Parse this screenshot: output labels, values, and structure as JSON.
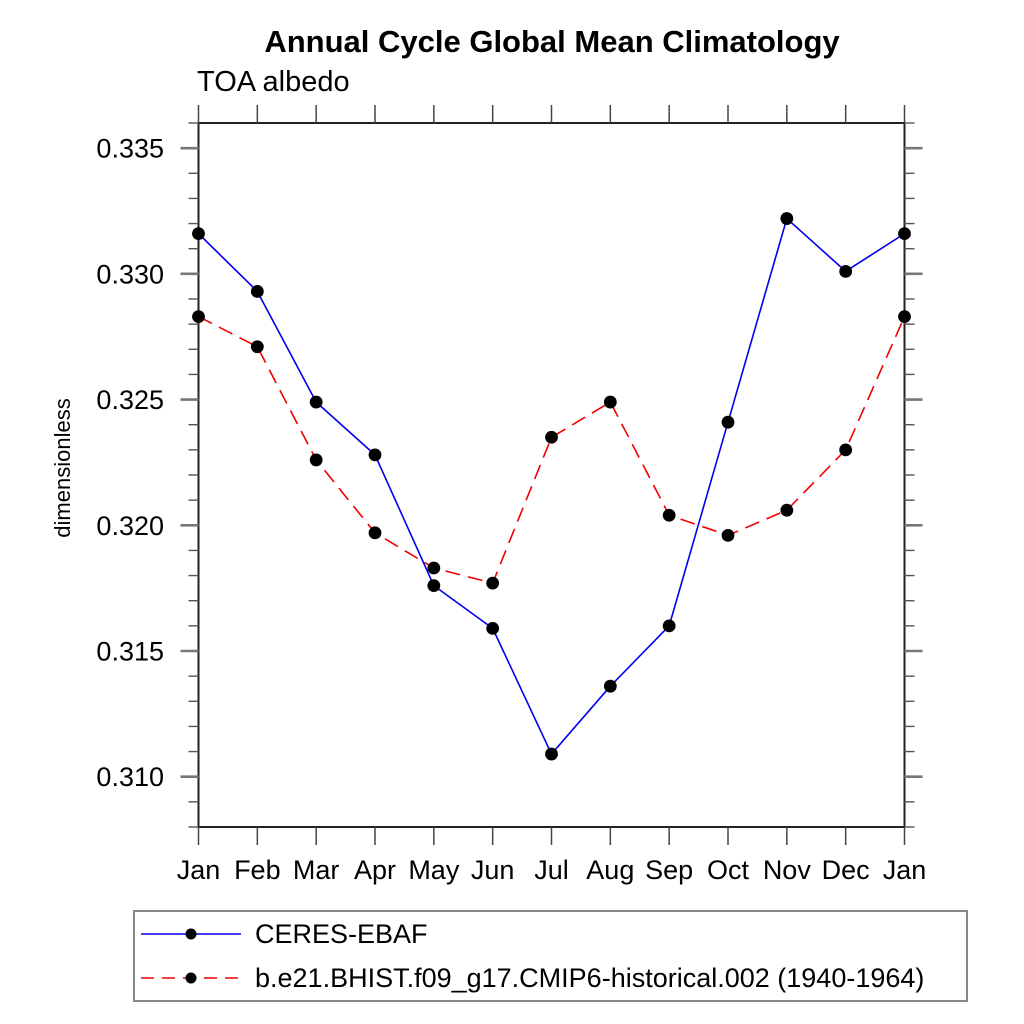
{
  "chart_data": {
    "type": "line",
    "title": "Annual Cycle Global Mean Climatology",
    "subtitle": "TOA albedo",
    "ylabel": "dimensionless",
    "x_tick_labels": [
      "Jan",
      "Feb",
      "Mar",
      "Apr",
      "May",
      "Jun",
      "Jul",
      "Aug",
      "Sep",
      "Oct",
      "Nov",
      "Dec",
      "Jan"
    ],
    "ylim": [
      0.308,
      0.336
    ],
    "y_major_ticks": [
      0.31,
      0.315,
      0.32,
      0.325,
      0.33,
      0.335
    ],
    "y_minor_step": 0.001,
    "grid": "off",
    "legend_position": "bottom-left",
    "marker_color": "#000000",
    "series": [
      {
        "name": "CERES-EBAF",
        "color": "#0000ee",
        "style": "solid",
        "marker": "circle",
        "values": [
          0.3316,
          0.3293,
          0.3249,
          0.3228,
          0.3176,
          0.3159,
          0.3109,
          0.3136,
          0.316,
          0.3241,
          0.3322,
          0.3301,
          0.3316
        ]
      },
      {
        "name": "b.e21.BHIST.f09_g17.CMIP6-historical.002 (1940-1964)",
        "color": "#f00000",
        "style": "dashed",
        "marker": "circle",
        "values": [
          0.3283,
          0.3271,
          0.3226,
          0.3197,
          0.3183,
          0.3177,
          0.3235,
          0.3249,
          0.3204,
          0.3196,
          0.3206,
          0.323,
          0.3283
        ]
      }
    ]
  }
}
